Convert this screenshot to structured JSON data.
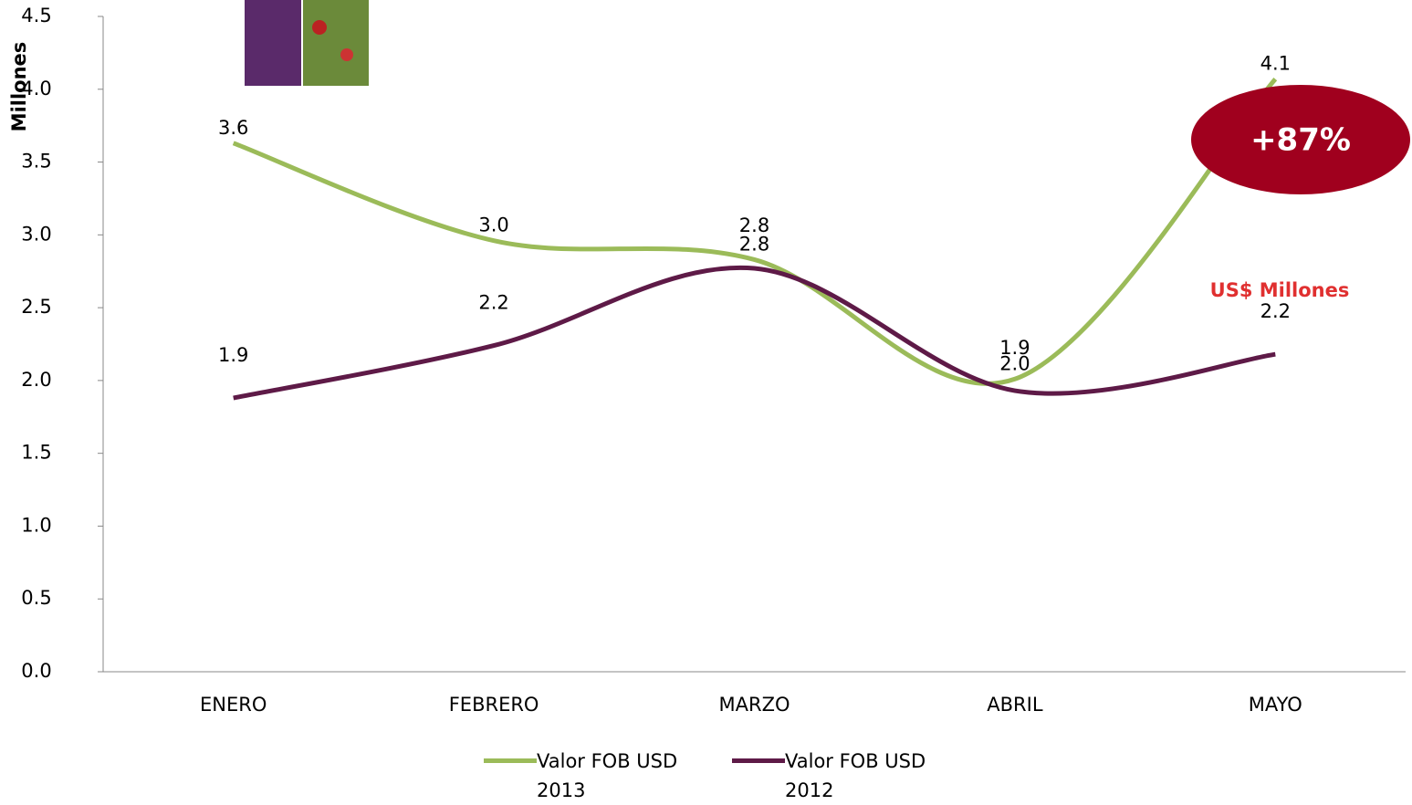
{
  "chart_data": {
    "type": "line",
    "y_label": "Millones",
    "categories": [
      "ENERO",
      "FEBRERO",
      "MARZO",
      "ABRIL",
      "MAYO"
    ],
    "series": [
      {
        "name": "Valor FOB USD 2013",
        "color": "#9bbb59",
        "values": [
          3.63,
          2.96,
          2.83,
          2.01,
          4.07
        ],
        "value_labels": [
          "3.6",
          "3.0",
          "2.8",
          "2.0",
          "4.1"
        ]
      },
      {
        "name": "Valor FOB USD 2012",
        "color": "#5e1a47",
        "values": [
          1.88,
          2.24,
          2.77,
          1.93,
          2.18
        ],
        "value_labels": [
          "1.9",
          "2.2",
          "2.8",
          "1.9",
          "2.2"
        ]
      }
    ],
    "ylim": [
      0,
      4.5
    ],
    "yticks": [
      {
        "value": 0,
        "label": "0.0"
      },
      0.5,
      {
        "value": 1,
        "label": "1.0"
      },
      1.5,
      {
        "value": 2,
        "label": "2.0"
      },
      2.5,
      {
        "value": 3,
        "label": "3.0"
      },
      3.5,
      {
        "value": 4,
        "label": "4.0"
      },
      4.5
    ],
    "annotations": [
      "+87%",
      "US$ Millones"
    ],
    "legend": "bottom"
  }
}
